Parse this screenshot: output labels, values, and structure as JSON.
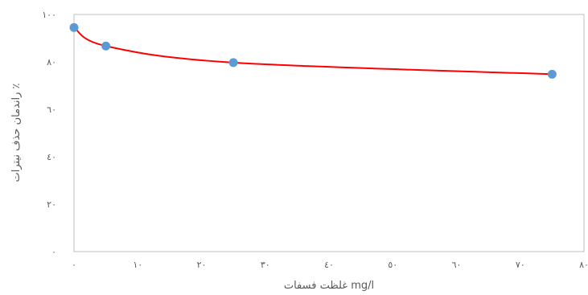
{
  "chart_data": {
    "type": "scatter",
    "title": "",
    "xlabel": "غلظت فسفات mg/l",
    "ylabel": "راندمان حذف نیترات ٪",
    "xlim": [
      0,
      80
    ],
    "ylim": [
      0,
      100
    ],
    "x_ticks": [
      0,
      10,
      20,
      30,
      40,
      50,
      60,
      70,
      80
    ],
    "y_ticks": [
      0,
      20,
      40,
      60,
      80,
      100
    ],
    "x_tick_labels": [
      "٠",
      "١٠",
      "٢٠",
      "٣٠",
      "٤٠",
      "٥٠",
      "٦٠",
      "٧٠",
      "٨٠"
    ],
    "y_tick_labels": [
      "٠",
      "٢٠",
      "٤٠",
      "٦٠",
      "٨٠",
      "١٠٠"
    ],
    "grid": false,
    "legend": "none",
    "series": [
      {
        "x": [
          0,
          5,
          25,
          75
        ],
        "y": [
          94.5,
          86.7,
          79.7,
          74.8
        ],
        "marker_color": "#5B9BD5",
        "line_color": "#FF0000",
        "smooth": true
      }
    ]
  }
}
